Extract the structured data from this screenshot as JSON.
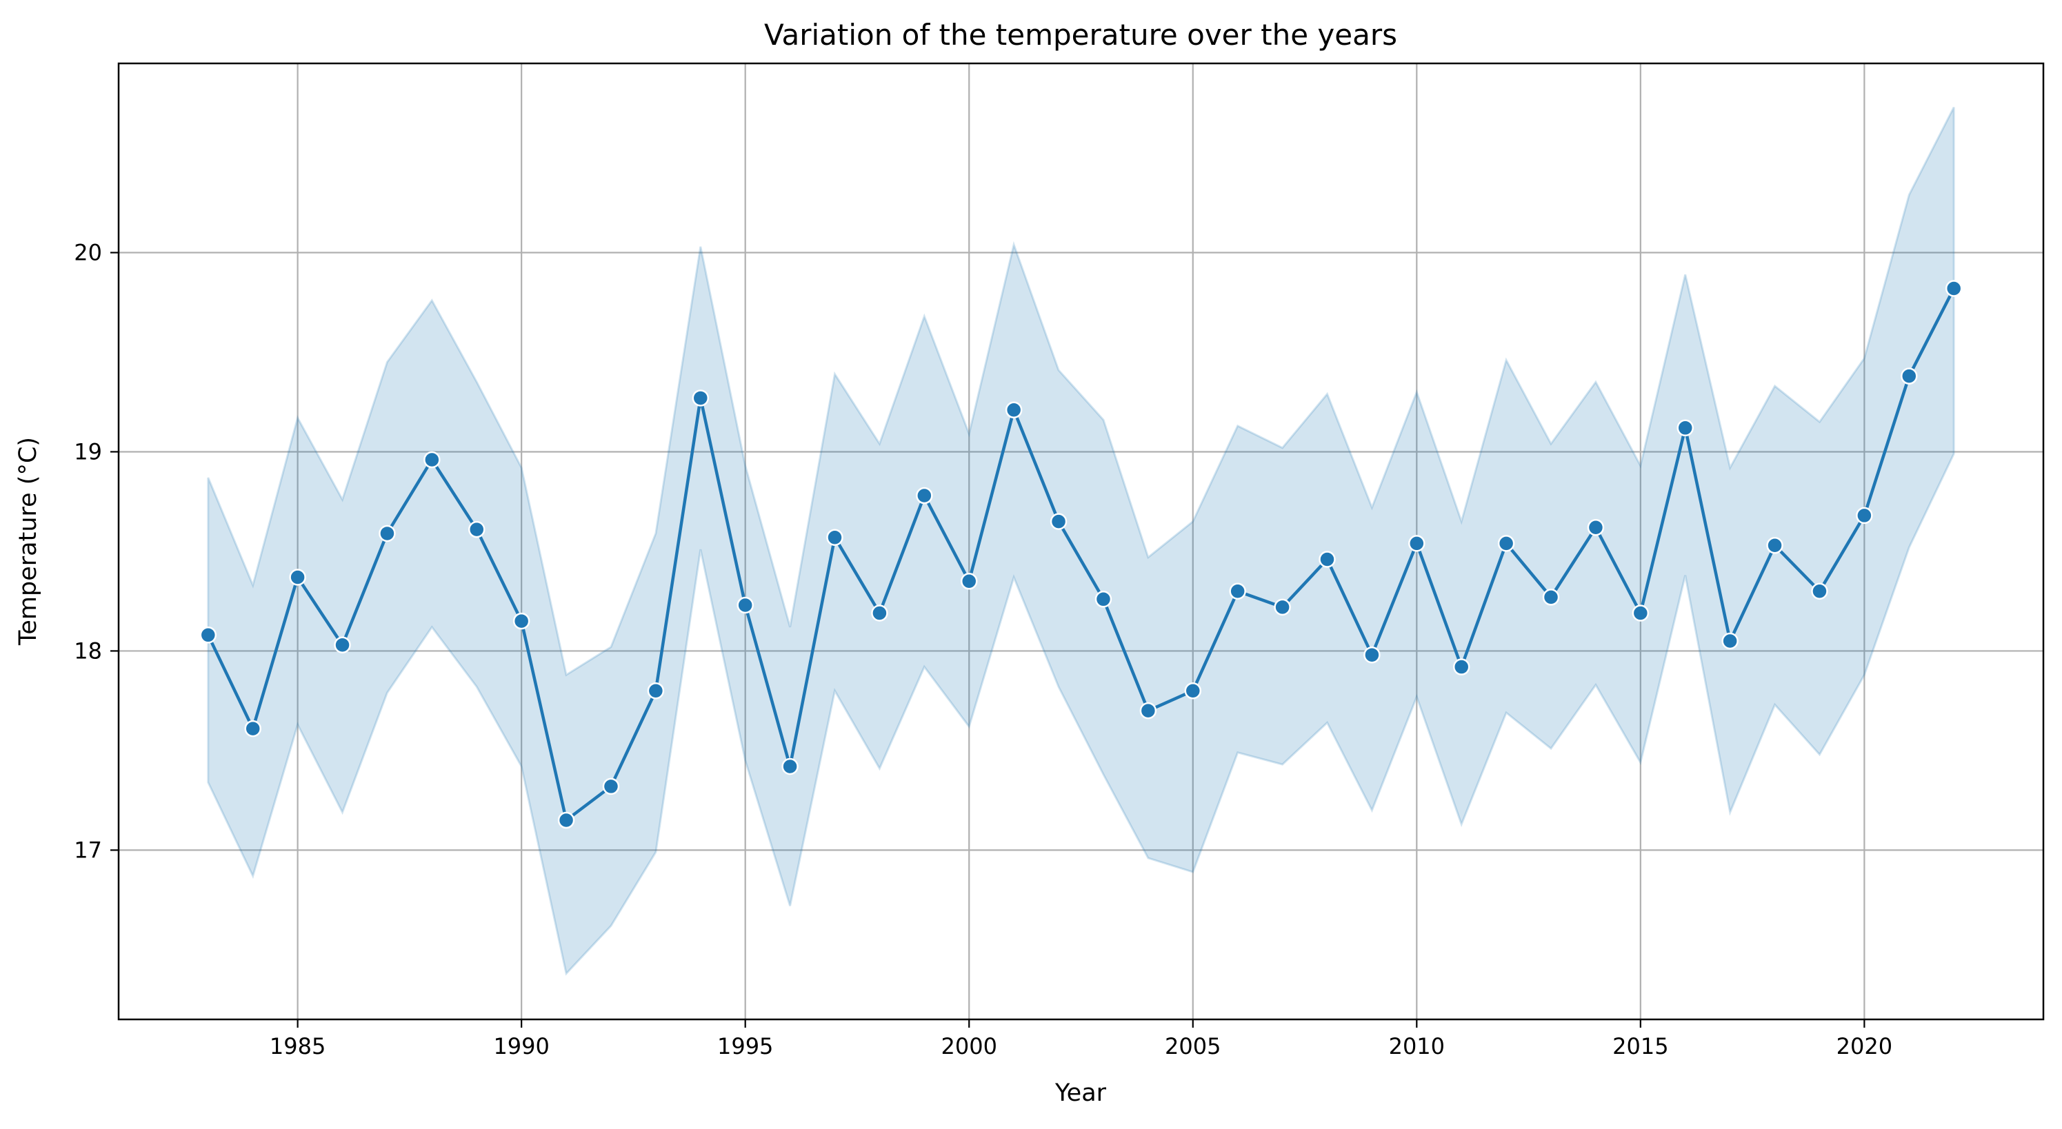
{
  "chart_data": {
    "type": "line",
    "title": "Variation of the temperature over the years",
    "xlabel": "Year",
    "ylabel": "Temperature (°C)",
    "xlim": [
      1981,
      2024
    ],
    "ylim": [
      16.15,
      20.95
    ],
    "xticks": [
      1985,
      1990,
      1995,
      2000,
      2005,
      2010,
      2015,
      2020
    ],
    "yticks": [
      17,
      18,
      19,
      20
    ],
    "grid": true,
    "colors": {
      "line": "#1f77b4",
      "band": "#1f77b4",
      "grid": "#b0b0b0"
    },
    "series": [
      {
        "x": [
          1983,
          1984,
          1985,
          1986,
          1987,
          1988,
          1989,
          1990,
          1991,
          1992,
          1993,
          1994,
          1995,
          1996,
          1997,
          1998,
          1999,
          2000,
          2001,
          2002,
          2003,
          2004,
          2005,
          2006,
          2007,
          2008,
          2009,
          2010,
          2011,
          2012,
          2013,
          2014,
          2015,
          2016,
          2017,
          2018,
          2019,
          2020,
          2021,
          2022
        ],
        "y": [
          18.08,
          17.61,
          18.37,
          18.03,
          18.59,
          18.96,
          18.61,
          18.15,
          17.15,
          17.32,
          17.8,
          19.27,
          18.23,
          17.42,
          18.57,
          18.19,
          18.78,
          18.35,
          19.21,
          18.65,
          18.26,
          17.7,
          17.8,
          18.3,
          18.22,
          18.46,
          17.98,
          18.54,
          17.92,
          18.54,
          18.27,
          18.62,
          18.19,
          19.12,
          18.05,
          18.53,
          18.3,
          18.68,
          19.38,
          19.82
        ],
        "lower": [
          17.34,
          16.87,
          17.63,
          17.19,
          17.79,
          18.12,
          17.82,
          17.42,
          16.38,
          16.62,
          16.99,
          18.51,
          17.45,
          16.72,
          17.8,
          17.41,
          17.92,
          17.62,
          18.37,
          17.82,
          17.38,
          16.96,
          16.89,
          17.49,
          17.43,
          17.64,
          17.2,
          17.77,
          17.13,
          17.69,
          17.51,
          17.83,
          17.44,
          18.38,
          17.19,
          17.73,
          17.48,
          17.88,
          18.52,
          18.99
        ],
        "upper": [
          18.87,
          18.33,
          19.17,
          18.76,
          19.45,
          19.76,
          19.35,
          18.92,
          17.88,
          18.02,
          18.59,
          20.03,
          18.93,
          18.12,
          19.39,
          19.04,
          19.68,
          19.09,
          20.04,
          19.41,
          19.16,
          18.47,
          18.65,
          19.13,
          19.02,
          19.29,
          18.72,
          19.3,
          18.65,
          19.46,
          19.04,
          19.35,
          18.93,
          19.89,
          18.92,
          19.33,
          19.15,
          19.47,
          20.29,
          20.73
        ]
      }
    ]
  }
}
